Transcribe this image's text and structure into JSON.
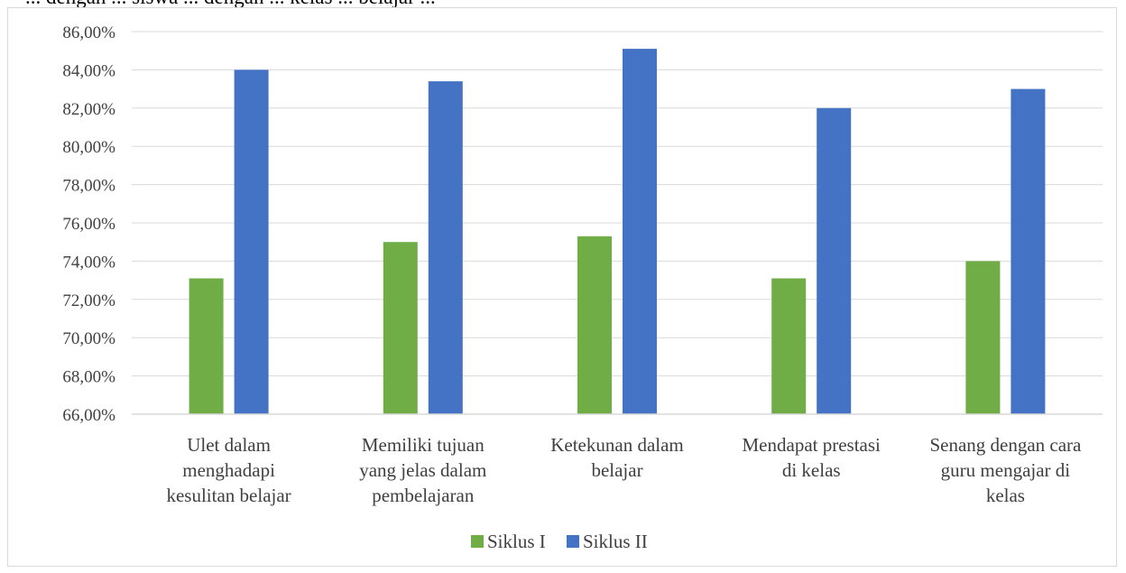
{
  "page": {
    "top_text": "... dengan ... siswa ... dengan ... kelas ... belajar ..."
  },
  "chart_data": {
    "type": "bar",
    "title": "",
    "xlabel": "",
    "ylabel": "",
    "ylim": [
      66,
      86
    ],
    "ytick_step": 2,
    "ytick_labels": [
      "66,00%",
      "68,00%",
      "70,00%",
      "72,00%",
      "74,00%",
      "76,00%",
      "78,00%",
      "80,00%",
      "82,00%",
      "84,00%",
      "86,00%"
    ],
    "grid": true,
    "legend_position": "bottom",
    "categories": [
      [
        "Ulet dalam",
        "menghadapi",
        "kesulitan belajar"
      ],
      [
        "Memiliki tujuan",
        "yang jelas dalam",
        "pembelajaran"
      ],
      [
        "Ketekunan dalam",
        "belajar"
      ],
      [
        "Mendapat prestasi",
        "di kelas"
      ],
      [
        "Senang dengan cara",
        "guru mengajar di",
        "kelas"
      ]
    ],
    "series": [
      {
        "name": "Siklus I",
        "color": "#70ad47",
        "values": [
          73.1,
          75.0,
          75.3,
          73.1,
          74.0
        ]
      },
      {
        "name": "Siklus II",
        "color": "#4472c4",
        "values": [
          84.0,
          83.4,
          85.1,
          82.0,
          83.0
        ]
      }
    ]
  }
}
